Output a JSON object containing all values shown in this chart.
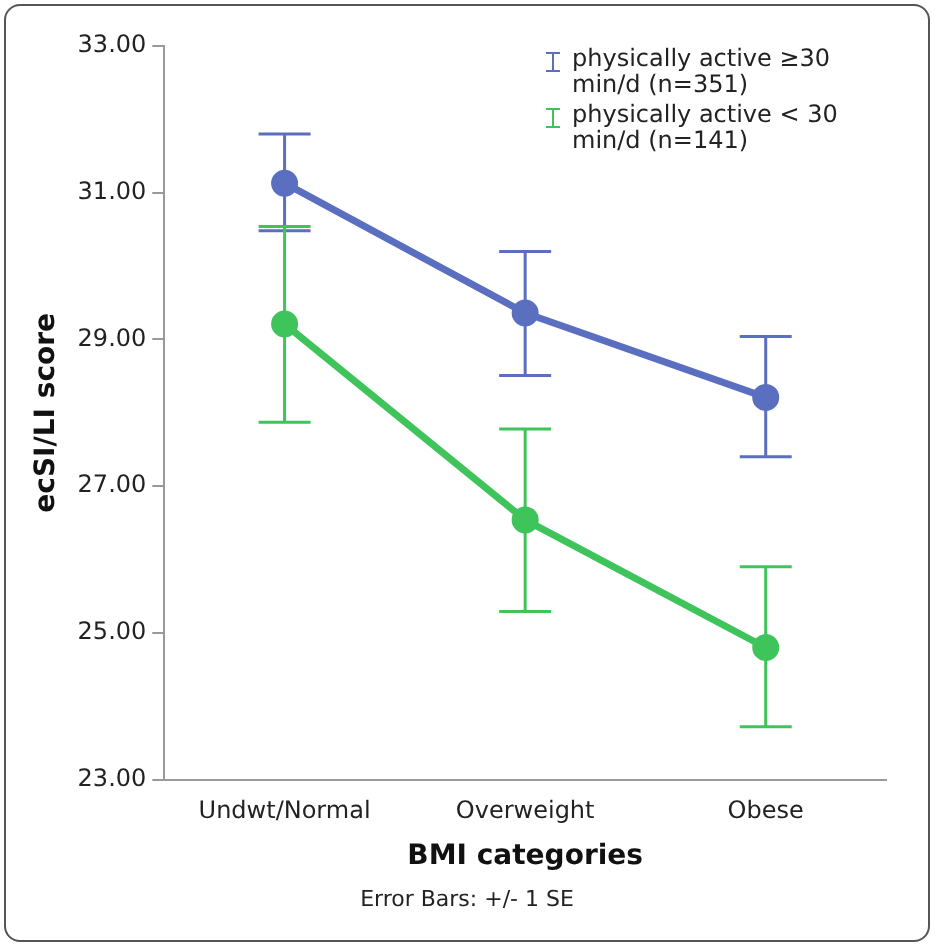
{
  "chart_data": {
    "type": "line",
    "xlabel": "BMI categories",
    "ylabel": "ecSI/LI score",
    "categories": [
      "Undwt/Normal",
      "Overweight",
      "Obese"
    ],
    "series": [
      {
        "name": "physically active ≥30 min/d (n=351)",
        "color": "#5a6fc0",
        "values": [
          31.13,
          29.36,
          28.21
        ],
        "errors": [
          [
            30.48,
            31.8
          ],
          [
            28.51,
            30.2
          ],
          [
            27.4,
            29.04
          ]
        ]
      },
      {
        "name": "physically active < 30 min/d (n=141)",
        "color": "#3ec45a",
        "values": [
          29.21,
          26.54,
          24.8
        ],
        "errors": [
          [
            27.87,
            30.54
          ],
          [
            25.29,
            27.78
          ],
          [
            23.72,
            25.9
          ]
        ]
      }
    ],
    "ylim": [
      23,
      33
    ],
    "yticks": [
      {
        "value": 23,
        "label": "23.00"
      },
      {
        "value": 25,
        "label": "25.00"
      },
      {
        "value": 27,
        "label": "27.00"
      },
      {
        "value": 29,
        "label": "29.00"
      },
      {
        "value": 31,
        "label": "31.00"
      },
      {
        "value": 33,
        "label": "33.00"
      }
    ],
    "grid": false,
    "legend": "top right",
    "marker": "circle",
    "line_style": "solid",
    "annotations": [
      "Error Bars: +/- 1 SE"
    ]
  }
}
